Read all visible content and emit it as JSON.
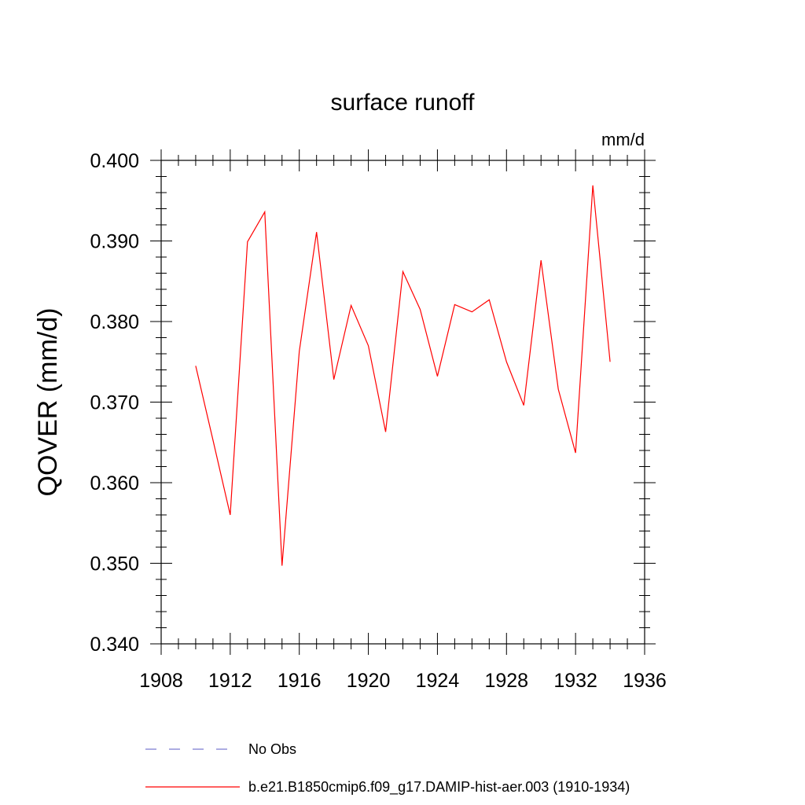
{
  "chart_data": {
    "type": "line",
    "title": "surface runoff",
    "units_label": "mm/d",
    "ylabel": "QOVER  (mm/d)",
    "xlabel": "",
    "xlim": [
      1908,
      1936
    ],
    "ylim": [
      0.34,
      0.4
    ],
    "x_ticks": [
      1908,
      1912,
      1916,
      1920,
      1924,
      1928,
      1932,
      1936
    ],
    "x_tick_labels": [
      "1908",
      "1912",
      "1916",
      "1920",
      "1924",
      "1928",
      "1932",
      "1936"
    ],
    "y_ticks": [
      0.34,
      0.35,
      0.36,
      0.37,
      0.38,
      0.39,
      0.4
    ],
    "y_tick_labels": [
      "0.340",
      "0.350",
      "0.360",
      "0.370",
      "0.380",
      "0.390",
      "0.400"
    ],
    "grid": false,
    "legend_position": "bottom",
    "series": [
      {
        "name": "No Obs",
        "color": "#7b7bd0",
        "dash": "dashed",
        "x": [],
        "y": []
      },
      {
        "name": "b.e21.B1850cmip6.f09_g17.DAMIP-hist-aer.003 (1910-1934)",
        "color": "#ff0000",
        "dash": "solid",
        "x": [
          1910,
          1911,
          1912,
          1913,
          1914,
          1915,
          1916,
          1917,
          1918,
          1919,
          1920,
          1921,
          1922,
          1923,
          1924,
          1925,
          1926,
          1927,
          1928,
          1929,
          1930,
          1931,
          1932,
          1933,
          1934
        ],
        "y": [
          0.3745,
          0.3653,
          0.356,
          0.3899,
          0.3936,
          0.3497,
          0.3763,
          0.3911,
          0.3728,
          0.382,
          0.377,
          0.3663,
          0.3862,
          0.3815,
          0.3732,
          0.3821,
          0.3812,
          0.3827,
          0.375,
          0.3696,
          0.3876,
          0.3716,
          0.3637,
          0.3969,
          0.375
        ]
      }
    ]
  }
}
